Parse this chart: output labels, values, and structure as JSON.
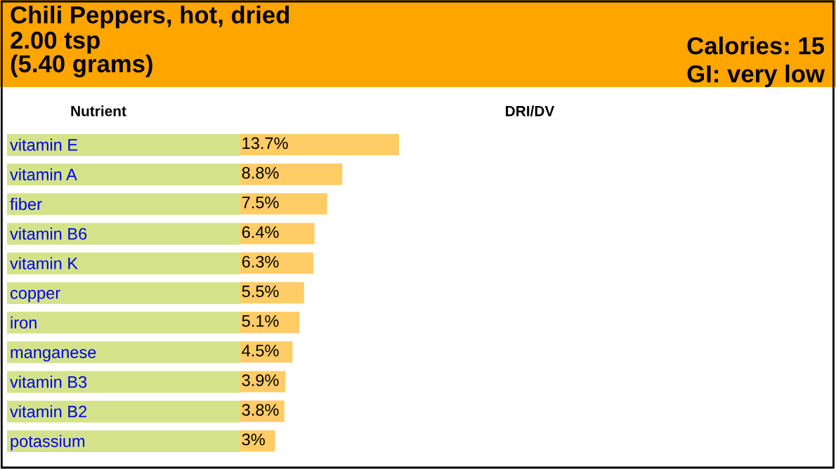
{
  "chart_data": {
    "type": "bar",
    "orientation": "horizontal",
    "title": "Chili Peppers, hot, dried",
    "subtitle": "2.00 tsp\n(5.40 grams)",
    "annotations": [
      "Calories: 15",
      "GI: very low",
      "Nutrient",
      "DRI/DV"
    ],
    "categories": [
      "vitamin E",
      "vitamin A",
      "fiber",
      "vitamin B6",
      "vitamin K",
      "copper",
      "iron",
      "manganese",
      "vitamin B3",
      "vitamin B2",
      "potassium"
    ],
    "values": [
      13.7,
      8.8,
      7.5,
      6.4,
      6.3,
      5.5,
      5.1,
      4.5,
      3.9,
      3.8,
      3
    ],
    "value_labels": [
      "13.7%",
      "8.8%",
      "7.5%",
      "6.4%",
      "6.3%",
      "5.5%",
      "5.1%",
      "4.5%",
      "3.9%",
      "3.8%",
      "3%"
    ],
    "color": "#ffcc66",
    "grid": false,
    "legend": false
  }
}
